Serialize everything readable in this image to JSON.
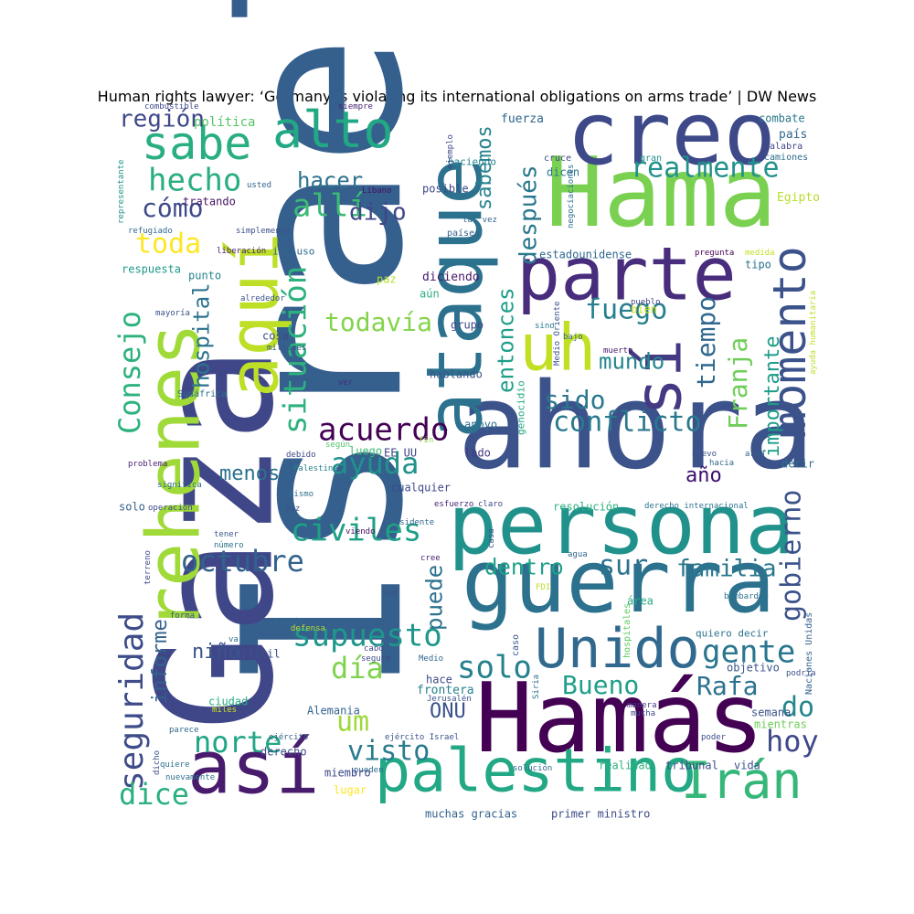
{
  "title": "Human rights lawyer: ‘Germany is violating its international obligations on arms trade’ | DW News",
  "words": [
    {
      "text": "Israel",
      "color": "#355f8d"
    },
    {
      "text": "Gaza",
      "color": "#3f4788"
    },
    {
      "text": "ahora",
      "color": "#3b528b"
    },
    {
      "text": "Hama",
      "color": "#7ad151"
    },
    {
      "text": "Hamás",
      "color": "#440154"
    },
    {
      "text": "creo",
      "color": "#3e4989"
    },
    {
      "text": "guerra",
      "color": "#2c728e"
    },
    {
      "text": "persona",
      "color": "#21918c"
    },
    {
      "text": "ataque",
      "color": "#2c728e"
    },
    {
      "text": "rehenes",
      "color": "#a0da39"
    },
    {
      "text": "parte",
      "color": "#472d7b"
    },
    {
      "text": "así",
      "color": "#481b6d"
    },
    {
      "text": "palestino",
      "color": "#22a884"
    },
    {
      "text": "aquí",
      "color": "#bddf26"
    },
    {
      "text": "sí",
      "color": "#443983"
    },
    {
      "text": "uh",
      "color": "#c2df23"
    },
    {
      "text": "Unido",
      "color": "#31688e"
    },
    {
      "text": "Irán",
      "color": "#35b779"
    },
    {
      "text": "momento",
      "color": "#3b528b"
    },
    {
      "text": "alto",
      "color": "#22a884"
    },
    {
      "text": "sabe",
      "color": "#28ae80"
    },
    {
      "text": "realmente",
      "color": "#21918c"
    },
    {
      "text": "hecho",
      "color": "#29af7f"
    },
    {
      "text": "región",
      "color": "#3e4989"
    },
    {
      "text": "cómo",
      "color": "#3e4a89"
    },
    {
      "text": "allí",
      "color": "#3bbb75"
    },
    {
      "text": "dijo",
      "color": "#404688"
    },
    {
      "text": "hacer",
      "color": "#2d718e"
    },
    {
      "text": "toda",
      "color": "#fde725"
    },
    {
      "text": "sabemos",
      "color": "#26828e"
    },
    {
      "text": "después",
      "color": "#2a788e"
    },
    {
      "text": "Consejo",
      "color": "#2db27d"
    },
    {
      "text": "situación",
      "color": "#2db27d"
    },
    {
      "text": "todavía",
      "color": "#84d44b"
    },
    {
      "text": "fuego",
      "color": "#277f8e"
    },
    {
      "text": "tiempo",
      "color": "#30688e"
    },
    {
      "text": "hospital",
      "color": "#2c738e"
    },
    {
      "text": "entonces",
      "color": "#1f9f88"
    },
    {
      "text": "mundo",
      "color": "#24868e"
    },
    {
      "text": "Franja",
      "color": "#6ece58"
    },
    {
      "text": "importante",
      "color": "#1e9c89"
    },
    {
      "text": "sido",
      "color": "#2a778e"
    },
    {
      "text": "conflicto",
      "color": "#2a788e"
    },
    {
      "text": "acuerdo",
      "color": "#440154"
    },
    {
      "text": "ayuda",
      "color": "#21918c"
    },
    {
      "text": "menos",
      "color": "#2d718e"
    },
    {
      "text": "año",
      "color": "#3b0f70"
    },
    {
      "text": "civiles",
      "color": "#1fa187"
    },
    {
      "text": "octubre",
      "color": "#33628d"
    },
    {
      "text": "sur",
      "color": "#2c728e"
    },
    {
      "text": "familia",
      "color": "#2a778e"
    },
    {
      "text": "dentro",
      "color": "#1fa187"
    },
    {
      "text": "gobierno",
      "color": "#3b528b"
    },
    {
      "text": "puede",
      "color": "#2d718e"
    },
    {
      "text": "supuesto",
      "color": "#1f978b"
    },
    {
      "text": "seguridad",
      "color": "#3e4c8a"
    },
    {
      "text": "informe",
      "color": "#34618d"
    },
    {
      "text": "solo",
      "color": "#26818e"
    },
    {
      "text": "gente",
      "color": "#2a768e"
    },
    {
      "text": "día",
      "color": "#7fd34e"
    },
    {
      "text": "niño",
      "color": "#3a548c"
    },
    {
      "text": "Bueno",
      "color": "#1fa088"
    },
    {
      "text": "Rafa",
      "color": "#2c728e"
    },
    {
      "text": "do",
      "color": "#24878e"
    },
    {
      "text": "norte",
      "color": "#21a685"
    },
    {
      "text": "um",
      "color": "#9dd93b"
    },
    {
      "text": "visto",
      "color": "#287c8e"
    },
    {
      "text": "ONU",
      "color": "#3b528b"
    },
    {
      "text": "hoy",
      "color": "#3f4889"
    },
    {
      "text": "dice",
      "color": "#2ab07f"
    },
    {
      "text": "combate",
      "color": "#2a788e"
    },
    {
      "text": "país",
      "color": "#31688e"
    },
    {
      "text": "fuerza",
      "color": "#31678e"
    },
    {
      "text": "política",
      "color": "#54c568"
    },
    {
      "text": "combustible",
      "color": "#3f4889"
    },
    {
      "text": "siempre",
      "color": "#482475"
    },
    {
      "text": "cruce",
      "color": "#3e4a89"
    },
    {
      "text": "gran",
      "color": "#21918c"
    },
    {
      "text": "palabra",
      "color": "#404688"
    },
    {
      "text": "camiones",
      "color": "#2e6e8e"
    },
    {
      "text": "dicen",
      "color": "#2c738e"
    },
    {
      "text": "Egipto",
      "color": "#b5de2b"
    },
    {
      "text": "haciendo",
      "color": "#26828e"
    },
    {
      "text": "tratando",
      "color": "#471365"
    },
    {
      "text": "usted",
      "color": "#33638d"
    },
    {
      "text": "Líbano",
      "color": "#471063"
    },
    {
      "text": "posible",
      "color": "#3e4989"
    },
    {
      "text": "ejemplo",
      "color": "#3f4788"
    },
    {
      "text": "tal vez",
      "color": "#31688e"
    },
    {
      "text": "países",
      "color": "#34618d"
    },
    {
      "text": "estadounidense",
      "color": "#30698e"
    },
    {
      "text": "negociaciones",
      "color": "#2c728e"
    },
    {
      "text": "representante",
      "color": "#21918c"
    },
    {
      "text": "refugiado",
      "color": "#31688e"
    },
    {
      "text": "simplemente",
      "color": "#3b528b"
    },
    {
      "text": "liberación",
      "color": "#482173"
    },
    {
      "text": "incluso",
      "color": "#30698e"
    },
    {
      "text": "respuesta",
      "color": "#1f998a"
    },
    {
      "text": "pregunta",
      "color": "#440154"
    },
    {
      "text": "medida",
      "color": "#c2df23"
    },
    {
      "text": "tipo",
      "color": "#2c728e"
    },
    {
      "text": "punto",
      "color": "#26828e"
    },
    {
      "text": "paz",
      "color": "#b5de2b"
    },
    {
      "text": "diciendo",
      "color": "#481769"
    },
    {
      "text": "bien",
      "color": "#d2e21b"
    },
    {
      "text": "alrededor",
      "color": "#3b528b"
    },
    {
      "text": "aún",
      "color": "#2ab07f"
    },
    {
      "text": "pueblo",
      "color": "#3f4889"
    },
    {
      "text": "mayoría",
      "color": "#3b528b"
    },
    {
      "text": "grupo",
      "color": "#3f4788"
    },
    {
      "text": "sino",
      "color": "#2a788e"
    },
    {
      "text": "Medio Oriente",
      "color": "#3b528b"
    },
    {
      "text": "cosa",
      "color": "#3e4989"
    },
    {
      "text": "bajo",
      "color": "#33638d"
    },
    {
      "text": "millones",
      "color": "#39568c"
    },
    {
      "text": "muerto",
      "color": "#48186a"
    },
    {
      "text": "ayuda humanitaria",
      "color": "#bddf26"
    },
    {
      "text": "hablando",
      "color": "#3a538b"
    },
    {
      "text": "ver",
      "color": "#472d7b"
    },
    {
      "text": "Sudáfrica",
      "color": "#2c728e"
    },
    {
      "text": "genocidio",
      "color": "#22a884"
    },
    {
      "text": "según",
      "color": "#52c569"
    },
    {
      "text": "fin",
      "color": "#8bd646"
    },
    {
      "text": "apoyo",
      "color": "#2c728e"
    },
    {
      "text": "debido",
      "color": "#3e4a89"
    },
    {
      "text": "luego",
      "color": "#3dbc74"
    },
    {
      "text": "EE UU",
      "color": "#404387"
    },
    {
      "text": "lado",
      "color": "#443983"
    },
    {
      "text": "nuevo",
      "color": "#3b528b"
    },
    {
      "text": "hacia",
      "color": "#31688e"
    },
    {
      "text": "arma",
      "color": "#33638d"
    },
    {
      "text": "decir",
      "color": "#2d718e"
    },
    {
      "text": "problema",
      "color": "#481f70"
    },
    {
      "text": "Palestina",
      "color": "#26818e"
    },
    {
      "text": "significa",
      "color": "#31688e"
    },
    {
      "text": "cualquier",
      "color": "#3e4989"
    },
    {
      "text": "mismo",
      "color": "#2c728e"
    },
    {
      "text": "solo",
      "color": "#34618d"
    },
    {
      "text": "operación",
      "color": "#3e4a89"
    },
    {
      "text": "vez",
      "color": "#3b528b"
    },
    {
      "text": "esfuerzo",
      "color": "#482878"
    },
    {
      "text": "claro",
      "color": "#3e4989"
    },
    {
      "text": "resolución",
      "color": "#2db27d"
    },
    {
      "text": "derecho internacional",
      "color": "#2c728e"
    },
    {
      "text": "presidente",
      "color": "#31688e"
    },
    {
      "text": "viendo",
      "color": "#460a5d"
    },
    {
      "text": "tener",
      "color": "#39568c"
    },
    {
      "text": "número",
      "color": "#2c728e"
    },
    {
      "text": "casa",
      "color": "#3b528b"
    },
    {
      "text": "agua",
      "color": "#31688e"
    },
    {
      "text": "cree",
      "color": "#482475"
    },
    {
      "text": "terreno",
      "color": "#3f4788"
    },
    {
      "text": "FDI",
      "color": "#bddf26"
    },
    {
      "text": "área",
      "color": "#25ab82"
    },
    {
      "text": "tan",
      "color": "#3b528b"
    },
    {
      "text": "bombardeo",
      "color": "#2c728e"
    },
    {
      "text": "forma",
      "color": "#3b528b"
    },
    {
      "text": "través",
      "color": "#30698e"
    },
    {
      "text": "hospitales",
      "color": "#5ec962"
    },
    {
      "text": "Naciones Unidas",
      "color": "#33628d"
    },
    {
      "text": "defensa",
      "color": "#b5de2b"
    },
    {
      "text": "cabo",
      "color": "#3e4989"
    },
    {
      "text": "caso",
      "color": "#39568c"
    },
    {
      "text": "quiero decir",
      "color": "#2c728e"
    },
    {
      "text": "va",
      "color": "#2c728e"
    },
    {
      "text": "difícil",
      "color": "#3b528b"
    },
    {
      "text": "seguro",
      "color": "#3e4989"
    },
    {
      "text": "Medio",
      "color": "#31688e"
    },
    {
      "text": "objetivo",
      "color": "#39568c"
    },
    {
      "text": "podría",
      "color": "#3b528b"
    },
    {
      "text": "ciudad",
      "color": "#25ab82"
    },
    {
      "text": "hace",
      "color": "#3e4989"
    },
    {
      "text": "frontera",
      "color": "#26818e"
    },
    {
      "text": "Jerusalén",
      "color": "#3b528b"
    },
    {
      "text": "Siria",
      "color": "#2c728e"
    },
    {
      "text": "miles",
      "color": "#d2e21b"
    },
    {
      "text": "Alemania",
      "color": "#33638d"
    },
    {
      "text": "semana",
      "color": "#3b528b"
    },
    {
      "text": "manera",
      "color": "#443983"
    },
    {
      "text": "mucha",
      "color": "#3e4989"
    },
    {
      "text": "mientras",
      "color": "#6ece58"
    },
    {
      "text": "parece",
      "color": "#31688e"
    },
    {
      "text": "ejército",
      "color": "#34618d"
    },
    {
      "text": "ejército Israel",
      "color": "#3b528b"
    },
    {
      "text": "poder",
      "color": "#3e4989"
    },
    {
      "text": "quiere",
      "color": "#2c728e"
    },
    {
      "text": "derecho",
      "color": "#3e4a89"
    },
    {
      "text": "dicho",
      "color": "#3b528b"
    },
    {
      "text": "pueden",
      "color": "#31688e"
    },
    {
      "text": "solución",
      "color": "#30698e"
    },
    {
      "text": "realidad",
      "color": "#2db27d"
    },
    {
      "text": "tribunal",
      "color": "#3e4989"
    },
    {
      "text": "vida",
      "color": "#3b528b"
    },
    {
      "text": "nuevamente",
      "color": "#2c728e"
    },
    {
      "text": "miembro",
      "color": "#3e4a89"
    },
    {
      "text": "lugar",
      "color": "#fde725"
    },
    {
      "text": "muchas gracias",
      "color": "#34618d"
    },
    {
      "text": "primer ministro",
      "color": "#3e4989"
    }
  ]
}
